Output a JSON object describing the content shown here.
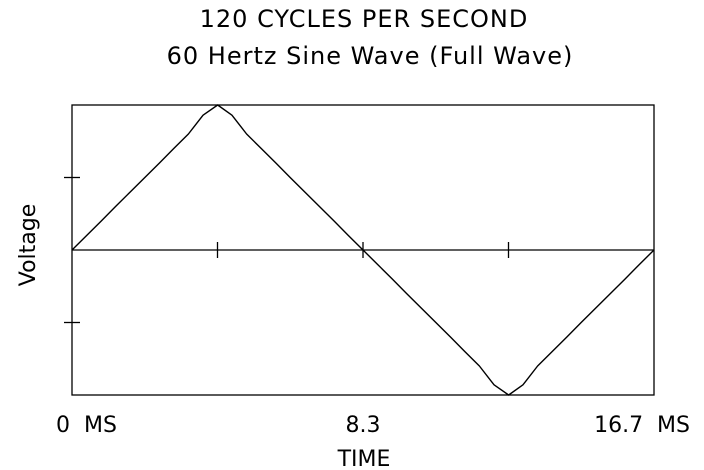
{
  "chart_data": {
    "type": "line",
    "title": "120 CYCLES PER SECOND",
    "subtitle": "60 Hertz Sine Wave (Full Wave)",
    "xlabel": "TIME",
    "ylabel": "Voltage",
    "x_tick_labels": [
      {
        "value": 0,
        "label": "0  MS"
      },
      {
        "value": 8.3,
        "label": "8.3"
      },
      {
        "value": 16.7,
        "label": "16.7  MS"
      }
    ],
    "xlim": [
      0,
      16.7
    ],
    "ylim": [
      -1,
      1
    ],
    "x_minor_ticks": [
      4.175,
      8.35,
      12.525
    ],
    "y_minor_ticks": [
      0.5,
      -0.5
    ],
    "grid": false,
    "series": [
      {
        "values_description_free": true,
        "x": [
          0,
          0.42,
          0.84,
          1.25,
          1.67,
          2.09,
          2.51,
          2.92,
          3.34,
          3.76,
          4.18,
          4.59,
          5.01,
          5.43,
          5.85,
          6.26,
          6.68,
          7.1,
          7.52,
          7.93,
          8.35,
          8.77,
          9.19,
          9.6,
          10.02,
          10.44,
          10.86,
          11.27,
          11.69,
          12.11,
          12.53,
          12.94,
          13.36,
          13.78,
          14.2,
          14.61,
          15.03,
          15.45,
          15.87,
          16.28,
          16.7
        ],
        "y": [
          0,
          0.1,
          0.2,
          0.3,
          0.4,
          0.5,
          0.6,
          0.7,
          0.8,
          0.93,
          1.0,
          0.93,
          0.8,
          0.7,
          0.6,
          0.5,
          0.4,
          0.3,
          0.2,
          0.1,
          0,
          -0.1,
          -0.2,
          -0.3,
          -0.4,
          -0.5,
          -0.6,
          -0.7,
          -0.8,
          -0.93,
          -1.0,
          -0.93,
          -0.8,
          -0.7,
          -0.6,
          -0.5,
          -0.4,
          -0.3,
          -0.2,
          -0.1,
          0
        ]
      }
    ]
  }
}
